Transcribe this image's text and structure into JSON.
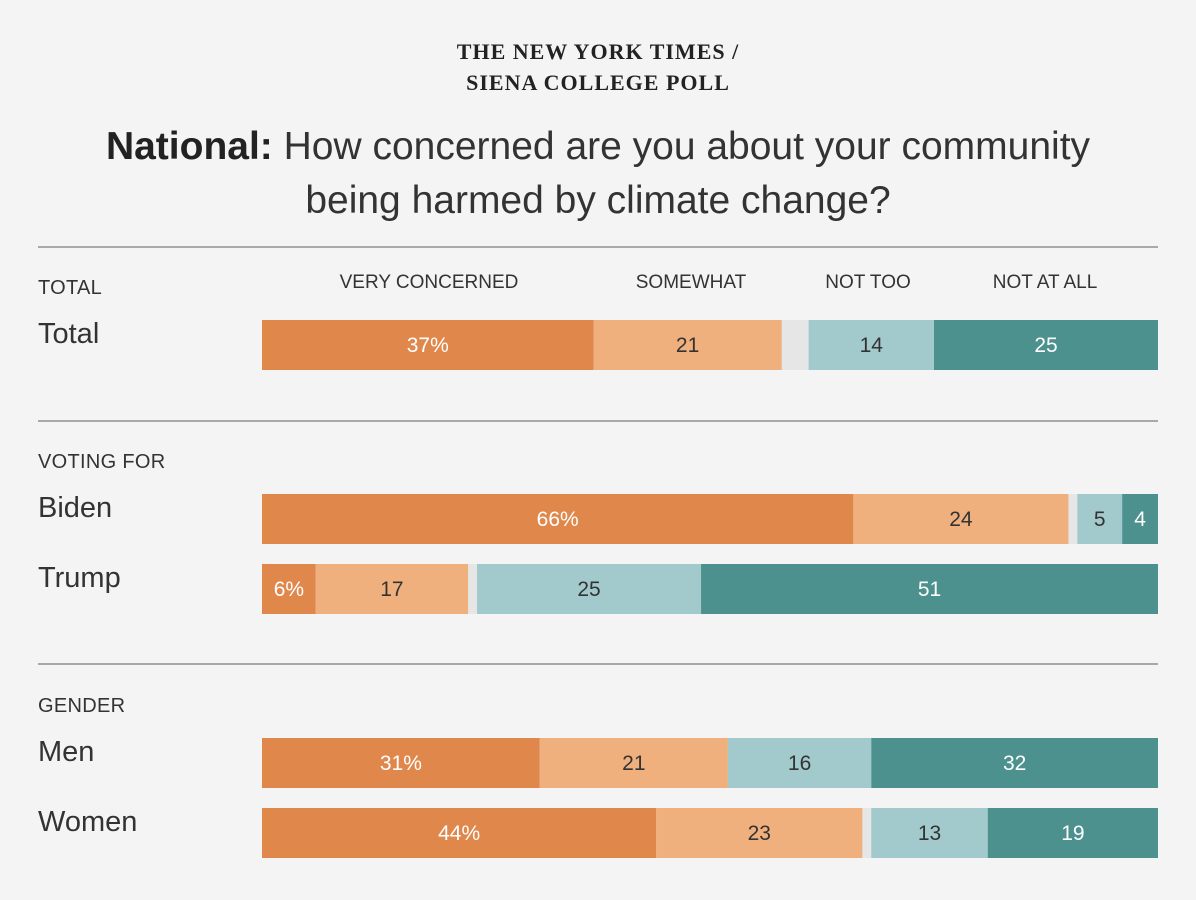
{
  "header": {
    "kicker_line1": "THE NEW YORK TIMES /",
    "kicker_line2": "SIENA COLLEGE POLL",
    "title_bold": "National:",
    "title_rest": "How concerned are you about your community being harmed by climate change?"
  },
  "columns": [
    "VERY CONCERNED",
    "SOMEWHAT",
    "NOT TOO",
    "NOT AT ALL"
  ],
  "colors": {
    "very": "#e0884c",
    "somewhat": "#f0b07e",
    "gap": "#e6e6e6",
    "not_too": "#a2cacc",
    "not_at_all": "#4c918e"
  },
  "chart_data": {
    "type": "bar",
    "stacked": true,
    "orientation": "horizontal",
    "title": "National: How concerned are you about your community being harmed by climate change?",
    "series_names": [
      "VERY CONCERNED",
      "SOMEWHAT",
      "NOT TOO",
      "NOT AT ALL"
    ],
    "groups": [
      {
        "label": "TOTAL",
        "rows": [
          {
            "name": "Total",
            "values": [
              37,
              21,
              14,
              25
            ],
            "labels": [
              "37%",
              "21",
              "14",
              "25"
            ]
          }
        ]
      },
      {
        "label": "VOTING FOR",
        "rows": [
          {
            "name": "Biden",
            "values": [
              66,
              24,
              5,
              4
            ],
            "labels": [
              "66%",
              "24",
              "5",
              "4"
            ]
          },
          {
            "name": "Trump",
            "values": [
              6,
              17,
              25,
              51
            ],
            "labels": [
              "6%",
              "17",
              "25",
              "51"
            ]
          }
        ]
      },
      {
        "label": "GENDER",
        "rows": [
          {
            "name": "Men",
            "values": [
              31,
              21,
              16,
              32
            ],
            "labels": [
              "31%",
              "21",
              "16",
              "32"
            ]
          },
          {
            "name": "Women",
            "values": [
              44,
              23,
              13,
              19
            ],
            "labels": [
              "44%",
              "23",
              "13",
              "19"
            ]
          }
        ]
      }
    ],
    "xlim": [
      0,
      100
    ],
    "grid": false
  }
}
